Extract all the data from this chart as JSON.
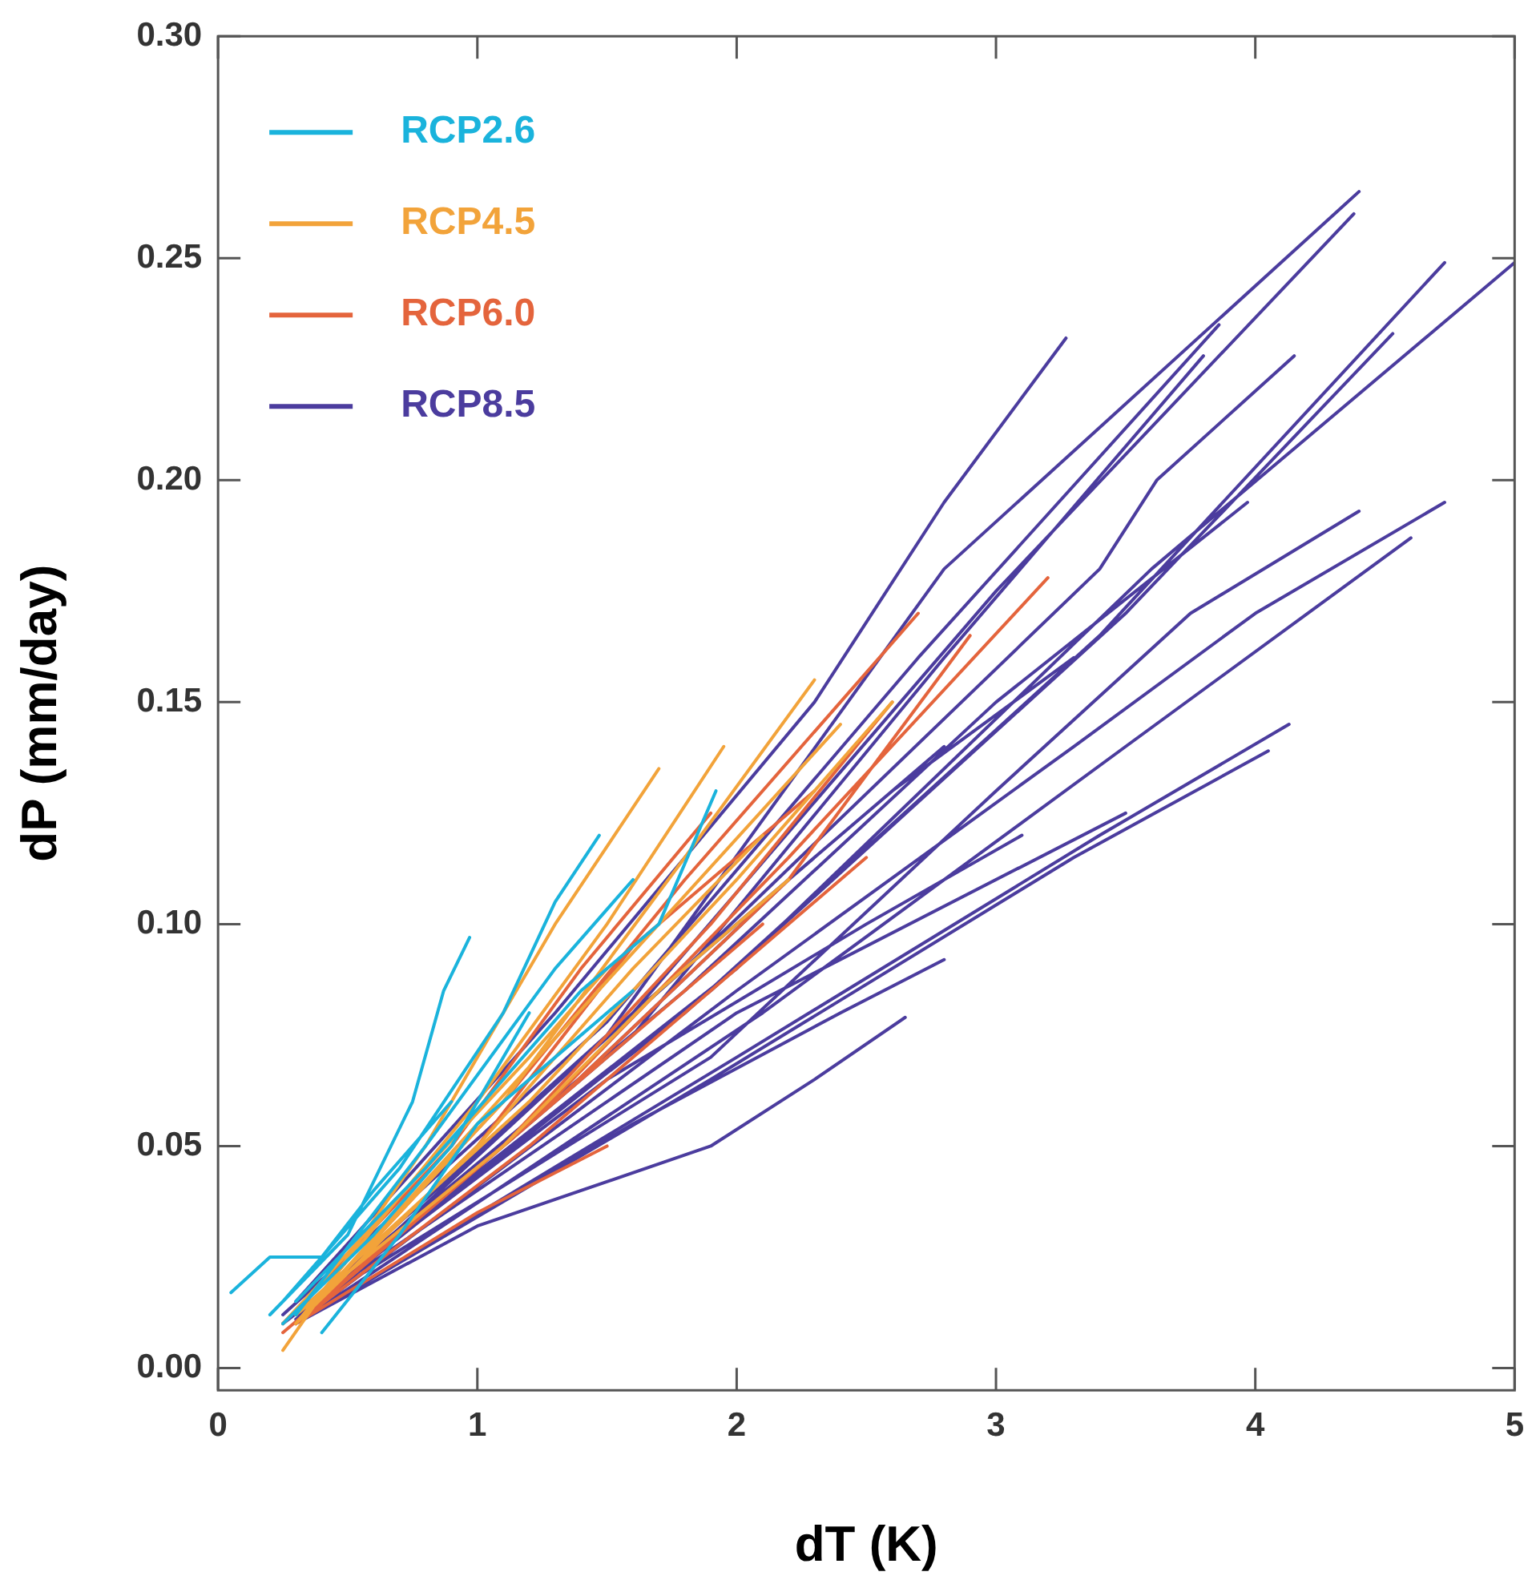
{
  "chart_data": {
    "type": "line",
    "xlabel": "dT (K)",
    "ylabel": "dP (mm/day)",
    "xlim": [
      0,
      5
    ],
    "xticks": [
      0,
      1,
      2,
      3,
      4,
      5
    ],
    "ylim": [
      -0.005,
      0.3
    ],
    "yticks": [
      {
        "value": 0,
        "label": "0.00"
      },
      {
        "value": 0.05,
        "label": "0.05"
      },
      {
        "value": 0.1,
        "label": "0.10"
      },
      {
        "value": 0.15,
        "label": "0.15"
      },
      {
        "value": 0.2,
        "label": "0.20"
      },
      {
        "value": 0.25,
        "label": "0.25"
      },
      {
        "value": 0.3,
        "label": "0.30"
      }
    ],
    "grid": false,
    "legend": "top left",
    "marker": "none",
    "line_style": "solid",
    "series": [
      {
        "name": "RCP2.6",
        "color": "#1ab3dc",
        "x": [
          0.2,
          0.5,
          0.75,
          0.87,
          0.97,
          null,
          0.25,
          0.7,
          1.1,
          1.3,
          1.47,
          null,
          0.3,
          0.8,
          1.3,
          1.6,
          null,
          0.3,
          0.8,
          1.4,
          1.7,
          1.92,
          null,
          0.05,
          0.2,
          0.4,
          0.6,
          0.9,
          null,
          0.25,
          0.6,
          0.9,
          1.2,
          null,
          0.4,
          0.7,
          1.0,
          1.3,
          1.6
        ],
        "values": [
          0.012,
          0.03,
          0.06,
          0.085,
          0.097,
          null,
          0.015,
          0.045,
          0.08,
          0.105,
          0.12,
          null,
          0.012,
          0.05,
          0.09,
          0.11,
          null,
          0.015,
          0.045,
          0.085,
          0.1,
          0.13,
          null,
          0.017,
          0.025,
          0.025,
          0.04,
          0.06,
          null,
          0.01,
          0.03,
          0.05,
          0.08,
          null,
          0.008,
          0.03,
          0.055,
          0.07,
          0.085
        ]
      },
      {
        "name": "RCP4.5",
        "color": "#f2a33a",
        "x": [
          0.25,
          0.8,
          1.3,
          1.7,
          null,
          0.3,
          1.0,
          1.5,
          1.95,
          null,
          0.3,
          1.1,
          1.8,
          2.3,
          null,
          0.3,
          1.2,
          2.0,
          2.6,
          null,
          0.3,
          1.0,
          1.6,
          2.1,
          null,
          0.25,
          0.8,
          1.2,
          1.5,
          null,
          0.3,
          1.1,
          1.7,
          2.2,
          null,
          0.3,
          1.0,
          1.7,
          2.4
        ],
        "values": [
          0.004,
          0.05,
          0.1,
          0.135,
          null,
          0.01,
          0.06,
          0.1,
          0.14,
          null,
          0.01,
          0.06,
          0.115,
          0.155,
          null,
          0.012,
          0.06,
          0.11,
          0.15,
          null,
          0.01,
          0.05,
          0.09,
          0.12,
          null,
          0.01,
          0.045,
          0.07,
          0.09,
          null,
          0.012,
          0.05,
          0.085,
          0.11,
          null,
          0.01,
          0.055,
          0.1,
          0.145
        ]
      },
      {
        "name": "RCP6.0",
        "color": "#e4643c",
        "x": [
          0.3,
          1.2,
          2.2,
          3.2,
          null,
          0.25,
          1.3,
          2.2,
          2.9,
          null,
          0.3,
          1.1,
          1.9,
          2.6,
          null,
          0.3,
          1.0,
          1.6,
          2.3,
          null,
          0.25,
          0.9,
          1.4,
          1.9,
          null,
          0.3,
          1.2,
          1.9,
          2.5,
          null,
          0.3,
          1.0,
          1.6,
          2.1,
          null,
          0.3,
          1.0,
          1.5,
          null,
          0.3,
          1.1,
          1.8,
          2.7
        ],
        "values": [
          0.01,
          0.055,
          0.115,
          0.178,
          null,
          0.008,
          0.06,
          0.11,
          0.165,
          null,
          0.012,
          0.05,
          0.1,
          0.15,
          null,
          0.01,
          0.05,
          0.095,
          0.13,
          null,
          0.01,
          0.05,
          0.09,
          0.125,
          null,
          0.01,
          0.05,
          0.085,
          0.115,
          null,
          0.012,
          0.045,
          0.075,
          0.1,
          null,
          0.01,
          0.035,
          0.05,
          null,
          0.01,
          0.06,
          0.11,
          0.17
        ]
      },
      {
        "name": "RCP8.5",
        "color": "#4b3c9e",
        "x": [
          0.3,
          1.5,
          2.8,
          4.4,
          null,
          0.3,
          1.6,
          3.0,
          4.38,
          null,
          0.25,
          1.8,
          3.4,
          4.73,
          null,
          0.3,
          2.0,
          3.6,
          5.0,
          null,
          0.3,
          1.9,
          3.5,
          4.53,
          null,
          0.25,
          1.5,
          2.7,
          3.86,
          null,
          0.3,
          1.6,
          2.8,
          3.8,
          null,
          0.3,
          1.8,
          3.4,
          3.62,
          4.15,
          null,
          0.3,
          1.3,
          2.3,
          2.8,
          3.27,
          null,
          0.3,
          2.0,
          3.3,
          4.0,
          4.73,
          null,
          0.3,
          2.1,
          3.5,
          4.6,
          null,
          0.3,
          1.9,
          3.0,
          3.75,
          4.4,
          null,
          0.3,
          2.0,
          3.4,
          4.13,
          null,
          0.3,
          1.9,
          3.3,
          4.05,
          null,
          0.3,
          1.8,
          3.0,
          3.97,
          null,
          0.3,
          1.6,
          2.6,
          3.3,
          null,
          0.3,
          1.6,
          2.4,
          2.8,
          null,
          0.3,
          1.0,
          1.9,
          2.3,
          2.65,
          null,
          0.3,
          2.0,
          3.5,
          null,
          0.3,
          1.5,
          2.5,
          3.1,
          null,
          0.25,
          1.3,
          2.2,
          2.8
        ],
        "values": [
          0.012,
          0.075,
          0.18,
          0.265,
          null,
          0.01,
          0.08,
          0.175,
          0.26,
          null,
          0.01,
          0.08,
          0.165,
          0.249,
          null,
          0.012,
          0.09,
          0.18,
          0.249,
          null,
          0.011,
          0.085,
          0.17,
          0.233,
          null,
          0.012,
          0.078,
          0.16,
          0.235,
          null,
          0.01,
          0.075,
          0.16,
          0.228,
          null,
          0.012,
          0.09,
          0.18,
          0.2,
          0.228,
          null,
          0.015,
          0.08,
          0.15,
          0.195,
          0.232,
          null,
          0.01,
          0.085,
          0.14,
          0.17,
          0.195,
          null,
          0.01,
          0.08,
          0.14,
          0.187,
          null,
          0.012,
          0.07,
          0.13,
          0.17,
          0.193,
          null,
          0.01,
          0.07,
          0.12,
          0.145,
          null,
          0.01,
          0.065,
          0.115,
          0.139,
          null,
          0.012,
          0.085,
          0.15,
          0.195,
          null,
          0.012,
          0.08,
          0.13,
          0.16,
          null,
          0.01,
          0.055,
          0.08,
          0.092,
          null,
          0.01,
          0.032,
          0.05,
          0.065,
          0.079,
          null,
          0.012,
          0.08,
          0.125,
          null,
          0.012,
          0.065,
          0.1,
          0.12,
          null,
          0.01,
          0.06,
          0.11,
          0.14
        ]
      }
    ]
  }
}
